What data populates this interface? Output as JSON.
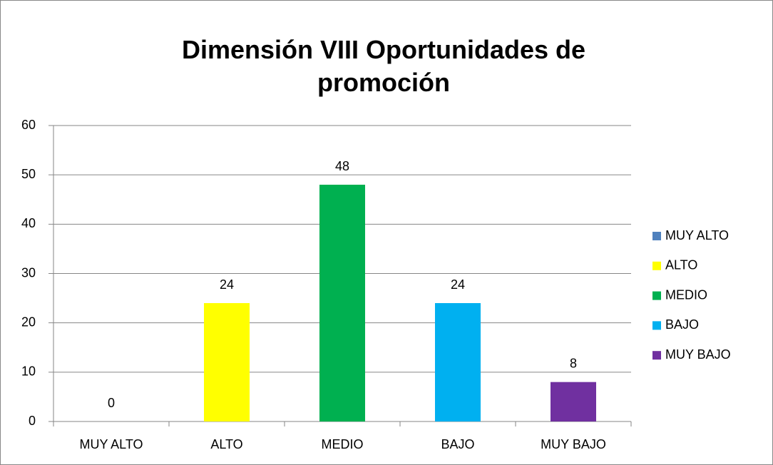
{
  "chart_data": {
    "type": "bar",
    "title": "Dimensión VIII Oportunidades de promoción",
    "categories": [
      "MUY ALTO",
      "ALTO",
      "MEDIO",
      "BAJO",
      "MUY BAJO"
    ],
    "values": [
      0,
      24,
      48,
      24,
      8
    ],
    "colors": [
      "#4f81bd",
      "#ffff00",
      "#00b050",
      "#00b0f0",
      "#7030a0"
    ],
    "ylim": [
      0,
      60
    ],
    "yticks": [
      0,
      10,
      20,
      30,
      40,
      50,
      60
    ],
    "grid": true,
    "legend": "right"
  }
}
